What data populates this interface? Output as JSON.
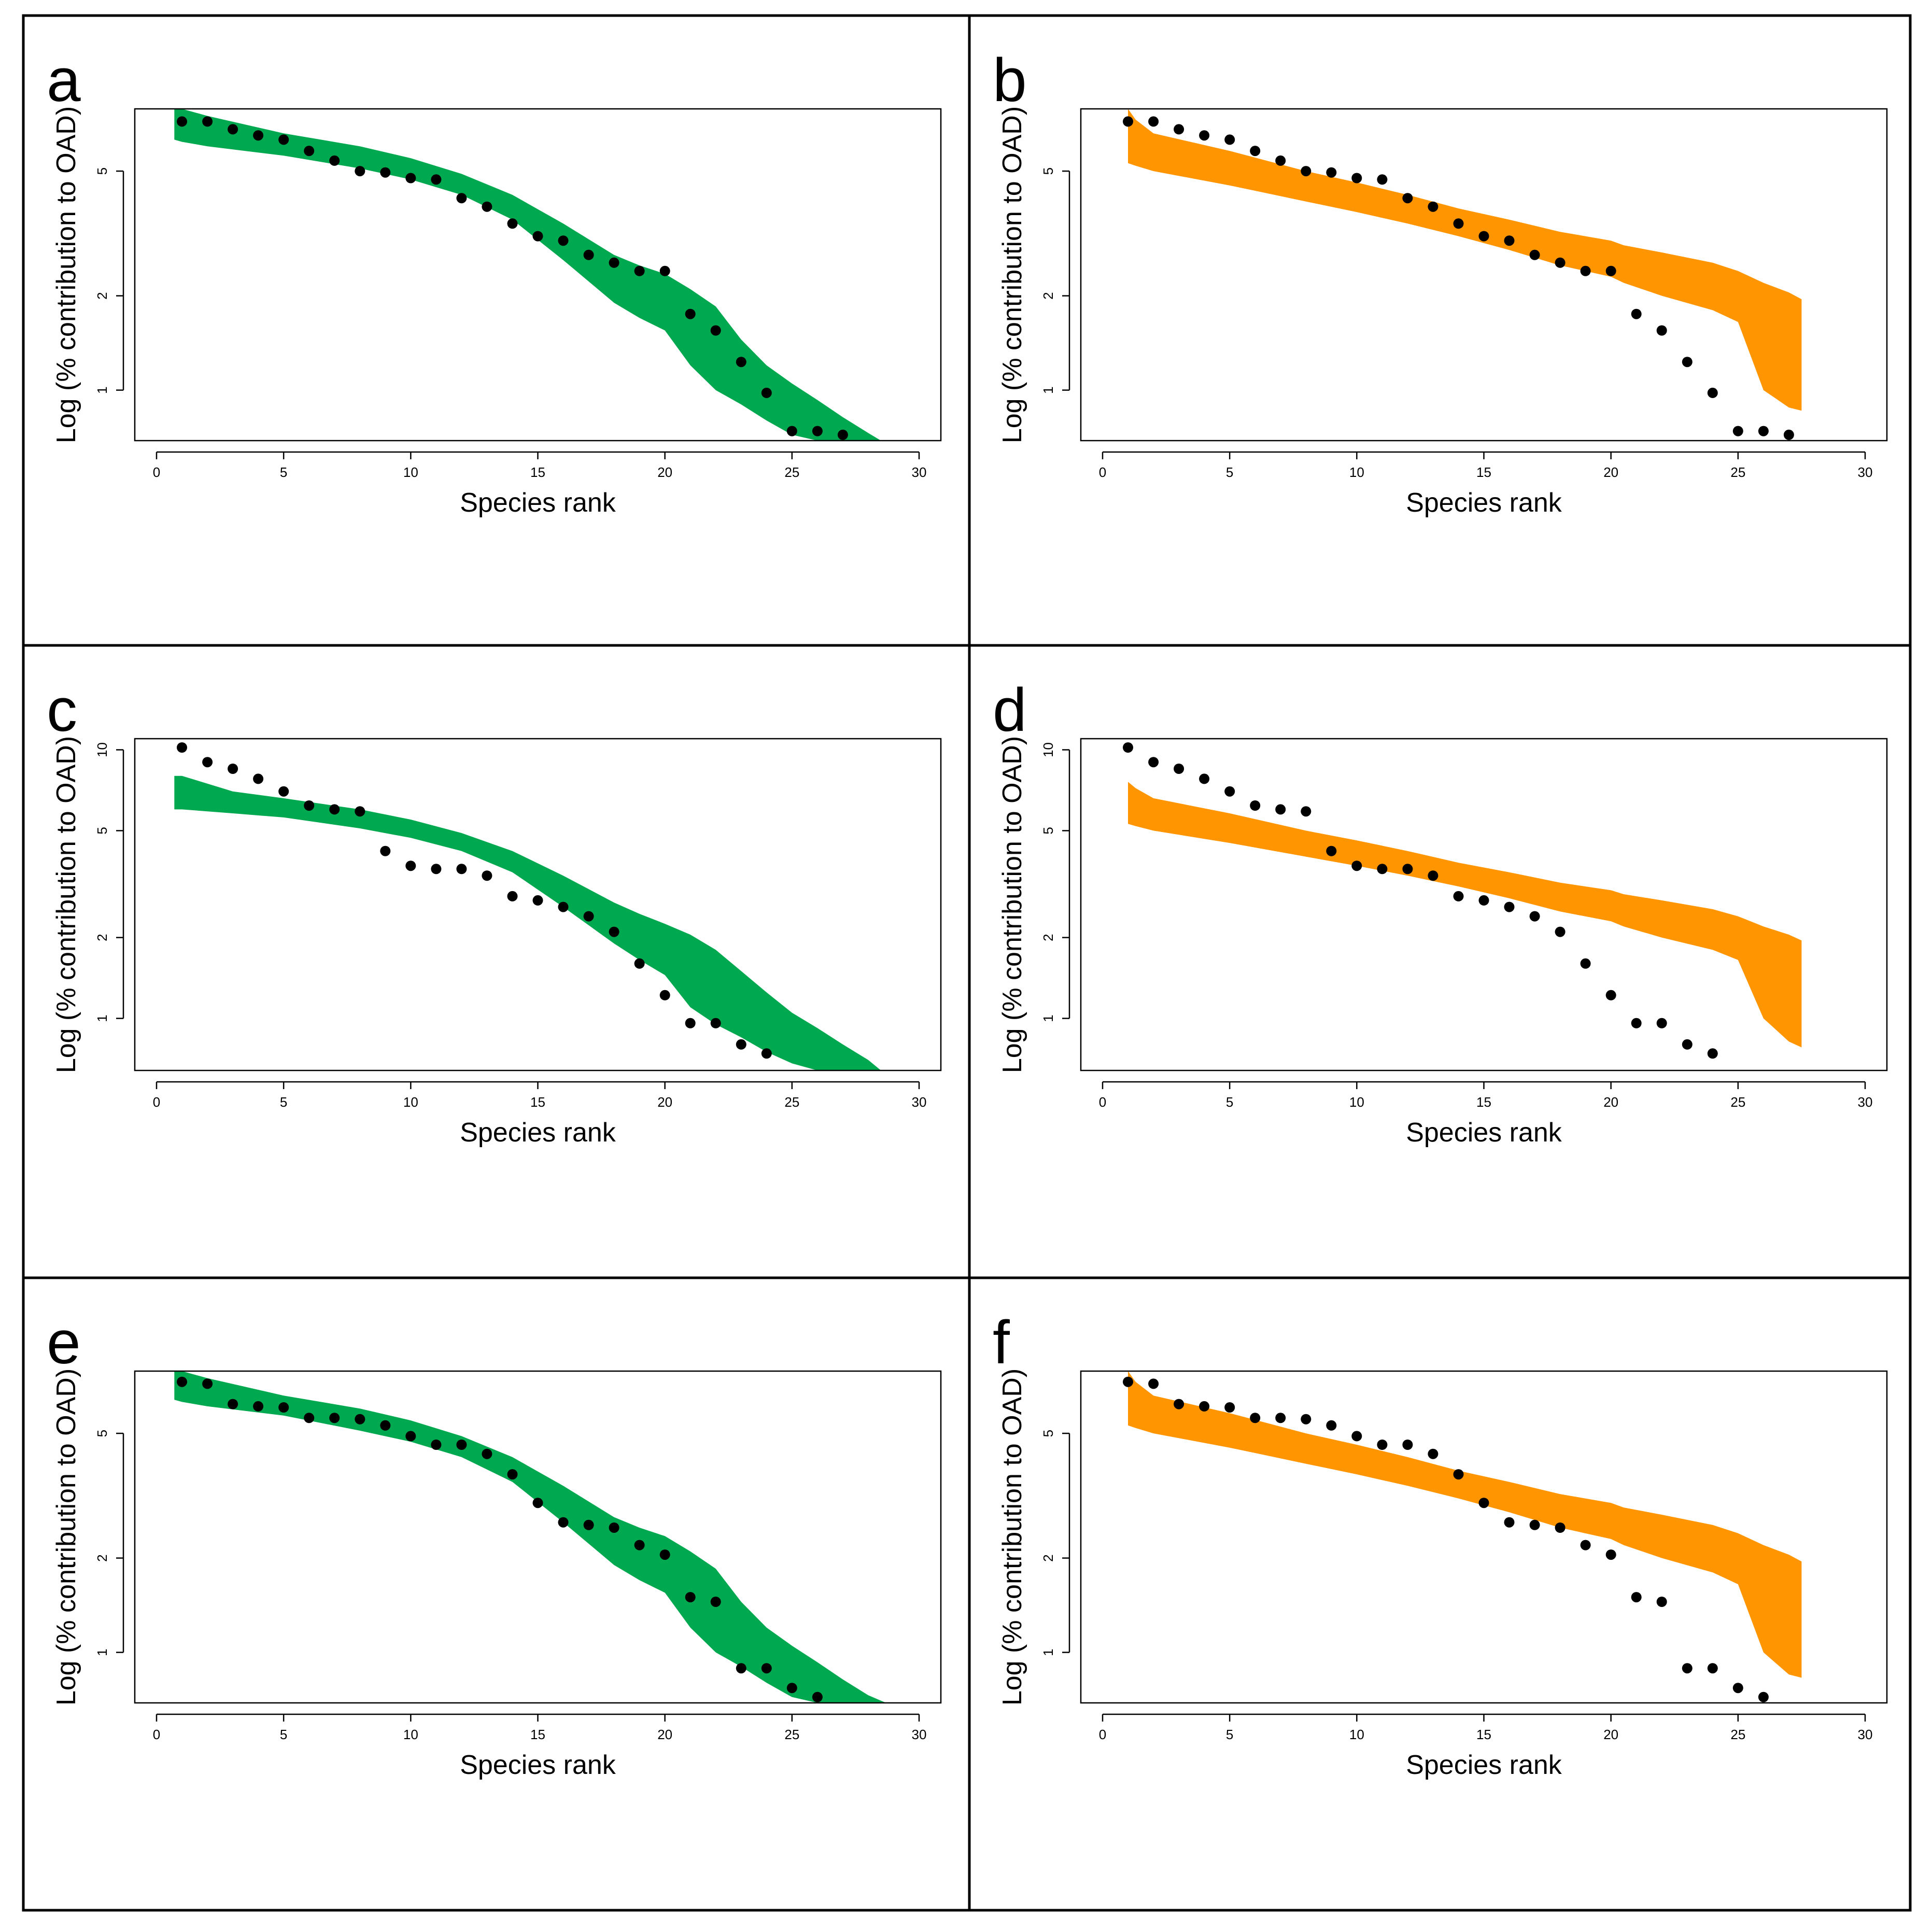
{
  "figure": {
    "xlabel": "Species rank",
    "ylabel": "Log (% contribution to OAD)",
    "x_ticks": [
      0,
      5,
      10,
      15,
      20,
      25,
      30
    ],
    "colors": {
      "green": "#00A84F",
      "orange": "#FF9500",
      "points": "#000000",
      "frame": "#000000"
    }
  },
  "chart_data": [
    {
      "panel": "a",
      "type": "scatter",
      "band_color": "green",
      "xlim": [
        0,
        30
      ],
      "ylim": [
        0.69,
        7.9
      ],
      "y_ticks": [
        1,
        2,
        5
      ],
      "points": {
        "x": [
          1,
          2,
          3,
          4,
          5,
          6,
          7,
          8,
          9,
          10,
          11,
          12,
          13,
          14,
          15,
          16,
          17,
          18,
          19,
          20,
          21,
          22,
          23,
          24,
          25,
          26,
          27
        ],
        "y": [
          7.2,
          7.2,
          6.8,
          6.5,
          6.3,
          5.8,
          5.4,
          5.0,
          4.95,
          4.75,
          4.7,
          4.1,
          3.85,
          3.4,
          3.1,
          3.0,
          2.7,
          2.55,
          2.4,
          2.4,
          1.75,
          1.55,
          1.23,
          0.98,
          0.74,
          0.74,
          0.72
        ]
      },
      "band": {
        "x": [
          0.7,
          1,
          2,
          5,
          8,
          10,
          12,
          14,
          16,
          18,
          19,
          20,
          21,
          22,
          23,
          24,
          25,
          26,
          27,
          28,
          28.5
        ],
        "upper": [
          7.9,
          7.9,
          7.5,
          6.6,
          6.0,
          5.5,
          4.9,
          4.2,
          3.4,
          2.7,
          2.5,
          2.35,
          2.1,
          1.85,
          1.45,
          1.2,
          1.05,
          0.93,
          0.82,
          0.73,
          0.69
        ],
        "lower": [
          6.3,
          6.2,
          6.0,
          5.6,
          5.1,
          4.7,
          4.2,
          3.5,
          2.6,
          1.9,
          1.7,
          1.55,
          1.2,
          1.0,
          0.9,
          0.8,
          0.72,
          0.69,
          0.69,
          0.69,
          0.69
        ]
      }
    },
    {
      "panel": "b",
      "type": "scatter",
      "band_color": "orange",
      "xlim": [
        0,
        30
      ],
      "ylim": [
        0.69,
        7.9
      ],
      "y_ticks": [
        1,
        2,
        5
      ],
      "points": {
        "x": [
          1,
          2,
          3,
          4,
          5,
          6,
          7,
          8,
          9,
          10,
          11,
          12,
          13,
          14,
          15,
          16,
          17,
          18,
          19,
          20,
          21,
          22,
          23,
          24,
          25,
          26,
          27
        ],
        "y": [
          7.2,
          7.2,
          6.8,
          6.5,
          6.3,
          5.8,
          5.4,
          5.0,
          4.95,
          4.75,
          4.7,
          4.1,
          3.85,
          3.4,
          3.1,
          3.0,
          2.7,
          2.55,
          2.4,
          2.4,
          1.75,
          1.55,
          1.23,
          0.98,
          0.74,
          0.74,
          0.72
        ]
      },
      "band": {
        "x": [
          1,
          1.3,
          2,
          5,
          8,
          10,
          12,
          14,
          16,
          18,
          20,
          20.5,
          22,
          24,
          25,
          26,
          27,
          27.5
        ],
        "upper": [
          7.9,
          7.3,
          6.6,
          5.8,
          5.0,
          4.6,
          4.2,
          3.8,
          3.5,
          3.2,
          3.0,
          2.9,
          2.75,
          2.55,
          2.4,
          2.2,
          2.05,
          1.95
        ],
        "lower": [
          5.3,
          5.2,
          5.0,
          4.5,
          4.0,
          3.7,
          3.4,
          3.1,
          2.8,
          2.5,
          2.3,
          2.2,
          2.0,
          1.8,
          1.65,
          1.0,
          0.88,
          0.86
        ]
      }
    },
    {
      "panel": "c",
      "type": "scatter",
      "band_color": "green",
      "xlim": [
        0,
        30
      ],
      "ylim": [
        0.64,
        11.0
      ],
      "y_ticks": [
        1,
        2,
        5,
        10
      ],
      "points": {
        "x": [
          1,
          2,
          3,
          4,
          5,
          6,
          7,
          8,
          9,
          10,
          11,
          12,
          13,
          14,
          15,
          16,
          17,
          18,
          19,
          20,
          21,
          22,
          23,
          24
        ],
        "y": [
          10.2,
          9.0,
          8.5,
          7.8,
          7.0,
          6.2,
          6.0,
          5.9,
          4.2,
          3.7,
          3.6,
          3.6,
          3.4,
          2.85,
          2.75,
          2.6,
          2.4,
          2.1,
          1.6,
          1.22,
          0.96,
          0.96,
          0.8,
          0.74
        ]
      },
      "band": {
        "x": [
          0.7,
          1,
          3,
          5,
          8,
          10,
          12,
          14,
          16,
          18,
          19,
          20,
          21,
          22,
          23,
          24,
          25,
          26,
          27,
          28,
          28.5
        ],
        "upper": [
          8.0,
          8.0,
          7.0,
          6.6,
          6.0,
          5.5,
          4.9,
          4.2,
          3.4,
          2.7,
          2.45,
          2.25,
          2.05,
          1.8,
          1.5,
          1.25,
          1.05,
          0.92,
          0.8,
          0.7,
          0.64
        ],
        "lower": [
          6.0,
          6.0,
          5.8,
          5.6,
          5.1,
          4.7,
          4.2,
          3.5,
          2.6,
          1.9,
          1.65,
          1.45,
          1.1,
          0.95,
          0.85,
          0.75,
          0.68,
          0.64,
          0.64,
          0.64,
          0.64
        ]
      }
    },
    {
      "panel": "d",
      "type": "scatter",
      "band_color": "orange",
      "xlim": [
        0,
        30
      ],
      "ylim": [
        0.64,
        11.0
      ],
      "y_ticks": [
        1,
        2,
        5,
        10
      ],
      "points": {
        "x": [
          1,
          2,
          3,
          4,
          5,
          6,
          7,
          8,
          9,
          10,
          11,
          12,
          13,
          14,
          15,
          16,
          17,
          18,
          19,
          20,
          21,
          22,
          23,
          24
        ],
        "y": [
          10.2,
          9.0,
          8.5,
          7.8,
          7.0,
          6.2,
          6.0,
          5.9,
          4.2,
          3.7,
          3.6,
          3.6,
          3.4,
          2.85,
          2.75,
          2.6,
          2.4,
          2.1,
          1.6,
          1.22,
          0.96,
          0.96,
          0.8,
          0.74
        ]
      },
      "band": {
        "x": [
          1,
          1.3,
          2,
          5,
          8,
          10,
          12,
          14,
          16,
          18,
          20,
          20.5,
          22,
          24,
          25,
          26,
          27,
          27.5
        ],
        "upper": [
          7.6,
          7.2,
          6.6,
          5.8,
          5.0,
          4.6,
          4.2,
          3.8,
          3.5,
          3.2,
          3.0,
          2.9,
          2.75,
          2.55,
          2.4,
          2.2,
          2.05,
          1.95
        ],
        "lower": [
          5.3,
          5.2,
          5.0,
          4.5,
          4.0,
          3.7,
          3.4,
          3.1,
          2.8,
          2.5,
          2.3,
          2.2,
          2.0,
          1.8,
          1.65,
          1.0,
          0.82,
          0.78
        ]
      }
    },
    {
      "panel": "e",
      "type": "scatter",
      "band_color": "green",
      "xlim": [
        0,
        30
      ],
      "ylim": [
        0.69,
        7.9
      ],
      "y_ticks": [
        1,
        2,
        5
      ],
      "points": {
        "x": [
          1,
          2,
          3,
          4,
          5,
          6,
          7,
          8,
          9,
          10,
          11,
          12,
          13,
          14,
          15,
          16,
          17,
          18,
          19,
          20,
          21,
          22,
          23,
          24,
          25,
          26
        ],
        "y": [
          7.3,
          7.2,
          6.2,
          6.1,
          6.05,
          5.6,
          5.6,
          5.55,
          5.3,
          4.9,
          4.6,
          4.6,
          4.3,
          3.7,
          3.0,
          2.6,
          2.55,
          2.5,
          2.2,
          2.05,
          1.5,
          1.45,
          0.89,
          0.89,
          0.77,
          0.72
        ]
      },
      "band": {
        "x": [
          0.7,
          1,
          2,
          5,
          8,
          10,
          12,
          14,
          16,
          18,
          19,
          20,
          21,
          22,
          23,
          24,
          25,
          26,
          27,
          28,
          28.7
        ],
        "upper": [
          7.9,
          7.9,
          7.5,
          6.6,
          6.0,
          5.5,
          4.9,
          4.2,
          3.4,
          2.7,
          2.5,
          2.35,
          2.1,
          1.85,
          1.45,
          1.2,
          1.05,
          0.93,
          0.82,
          0.73,
          0.69
        ],
        "lower": [
          6.4,
          6.3,
          6.1,
          5.7,
          5.1,
          4.7,
          4.2,
          3.5,
          2.6,
          1.9,
          1.7,
          1.55,
          1.2,
          1.0,
          0.9,
          0.8,
          0.72,
          0.69,
          0.69,
          0.69,
          0.69
        ]
      }
    },
    {
      "panel": "f",
      "type": "scatter",
      "band_color": "orange",
      "xlim": [
        0,
        30
      ],
      "ylim": [
        0.69,
        7.9
      ],
      "y_ticks": [
        1,
        2,
        5
      ],
      "points": {
        "x": [
          1,
          2,
          3,
          4,
          5,
          6,
          7,
          8,
          9,
          10,
          11,
          12,
          13,
          14,
          15,
          16,
          17,
          18,
          19,
          20,
          21,
          22,
          23,
          24,
          25,
          26
        ],
        "y": [
          7.3,
          7.2,
          6.2,
          6.1,
          6.05,
          5.6,
          5.6,
          5.55,
          5.3,
          4.9,
          4.6,
          4.6,
          4.3,
          3.7,
          3.0,
          2.6,
          2.55,
          2.5,
          2.2,
          2.05,
          1.5,
          1.45,
          0.89,
          0.89,
          0.77,
          0.72
        ]
      },
      "band": {
        "x": [
          1,
          1.3,
          2,
          5,
          8,
          10,
          12,
          14,
          16,
          18,
          20,
          20.5,
          22,
          24,
          25,
          26,
          27,
          27.5
        ],
        "upper": [
          7.9,
          7.3,
          6.6,
          5.8,
          5.0,
          4.6,
          4.2,
          3.8,
          3.5,
          3.2,
          3.0,
          2.9,
          2.75,
          2.55,
          2.4,
          2.2,
          2.05,
          1.95
        ],
        "lower": [
          5.3,
          5.2,
          5.0,
          4.5,
          4.0,
          3.7,
          3.4,
          3.1,
          2.8,
          2.5,
          2.3,
          2.2,
          2.0,
          1.8,
          1.65,
          1.0,
          0.85,
          0.83
        ]
      }
    }
  ]
}
